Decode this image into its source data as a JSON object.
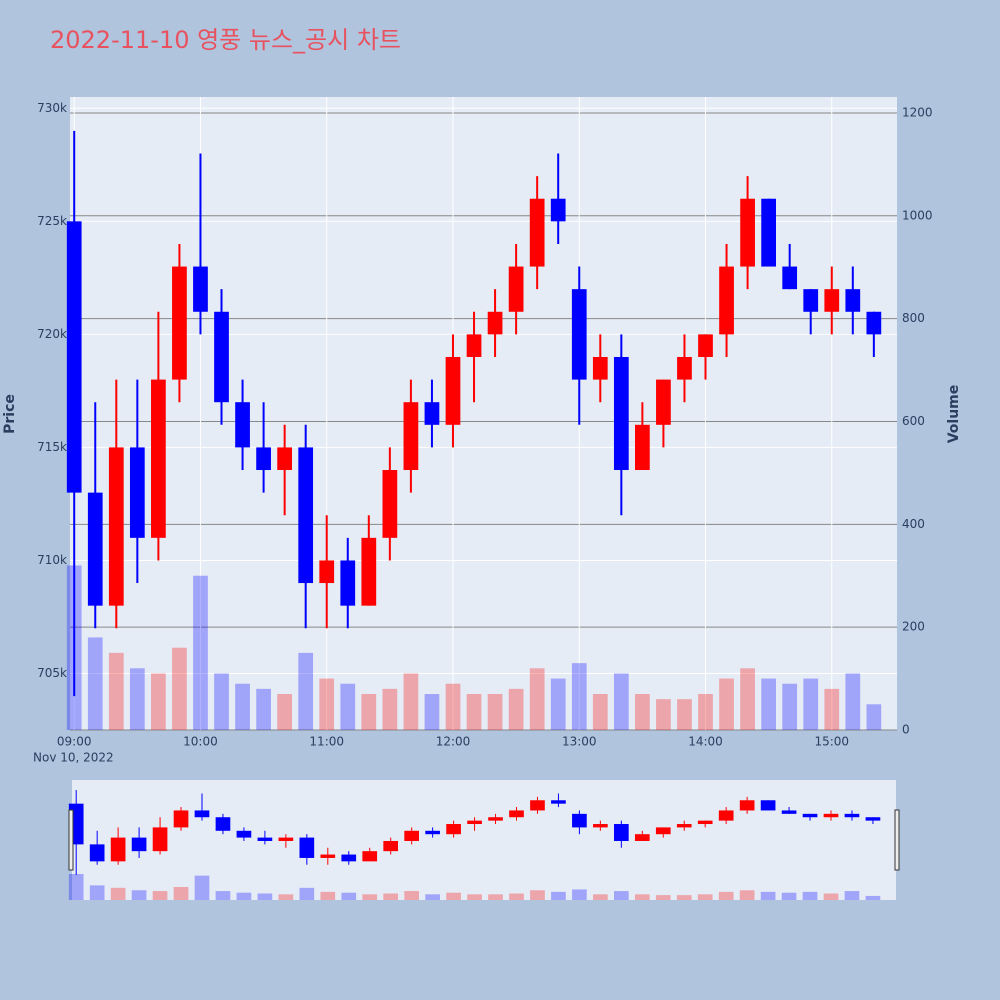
{
  "chart_data": {
    "type": "candlestick",
    "title": "2022-11-10 영풍 뉴스_공시 차트",
    "y_label": "Price",
    "y2_label": "Volume",
    "x_date_label": "Nov 10, 2022",
    "increasing_color": "#ff0000",
    "decreasing_color": "#0000ff",
    "x": [
      "2022-11-10 09:00",
      "2022-11-10 09:10",
      "2022-11-10 09:20",
      "2022-11-10 09:30",
      "2022-11-10 09:40",
      "2022-11-10 09:50",
      "2022-11-10 10:00",
      "2022-11-10 10:10",
      "2022-11-10 10:20",
      "2022-11-10 10:30",
      "2022-11-10 10:40",
      "2022-11-10 10:50",
      "2022-11-10 11:00",
      "2022-11-10 11:10",
      "2022-11-10 11:20",
      "2022-11-10 11:30",
      "2022-11-10 11:40",
      "2022-11-10 11:50",
      "2022-11-10 12:00",
      "2022-11-10 12:10",
      "2022-11-10 12:20",
      "2022-11-10 12:30",
      "2022-11-10 12:40",
      "2022-11-10 12:50",
      "2022-11-10 13:00",
      "2022-11-10 13:10",
      "2022-11-10 13:20",
      "2022-11-10 13:30",
      "2022-11-10 13:40",
      "2022-11-10 13:50",
      "2022-11-10 14:00",
      "2022-11-10 14:10",
      "2022-11-10 14:20",
      "2022-11-10 14:30",
      "2022-11-10 14:40",
      "2022-11-10 14:50",
      "2022-11-10 15:00",
      "2022-11-10 15:10",
      "2022-11-10 15:20"
    ],
    "open": [
      725000,
      713000,
      708000,
      715000,
      711000,
      718000,
      723000,
      721000,
      717000,
      715000,
      714000,
      715000,
      709000,
      710000,
      708000,
      711000,
      714000,
      717000,
      716000,
      719000,
      720000,
      721000,
      723000,
      726000,
      722000,
      718000,
      719000,
      714000,
      716000,
      718000,
      719000,
      720000,
      723000,
      726000,
      723000,
      722000,
      721000,
      722000,
      721000
    ],
    "high": [
      729000,
      717000,
      718000,
      718000,
      721000,
      724000,
      728000,
      722000,
      718000,
      717000,
      716000,
      716000,
      712000,
      711000,
      712000,
      715000,
      718000,
      718000,
      720000,
      721000,
      722000,
      724000,
      727000,
      728000,
      723000,
      720000,
      720000,
      717000,
      718000,
      720000,
      720000,
      724000,
      727000,
      726000,
      724000,
      722000,
      723000,
      723000,
      721000
    ],
    "low": [
      704000,
      707000,
      707000,
      709000,
      710000,
      717000,
      720000,
      716000,
      714000,
      713000,
      712000,
      707000,
      707000,
      707000,
      708000,
      710000,
      713000,
      715000,
      715000,
      717000,
      719000,
      720000,
      722000,
      724000,
      716000,
      717000,
      712000,
      714000,
      715000,
      717000,
      718000,
      719000,
      722000,
      723000,
      722000,
      720000,
      720000,
      720000,
      719000
    ],
    "close": [
      713000,
      708000,
      715000,
      711000,
      718000,
      723000,
      721000,
      717000,
      715000,
      714000,
      715000,
      709000,
      710000,
      708000,
      711000,
      714000,
      717000,
      716000,
      719000,
      720000,
      721000,
      723000,
      726000,
      725000,
      718000,
      719000,
      714000,
      716000,
      718000,
      719000,
      720000,
      723000,
      726000,
      723000,
      722000,
      721000,
      722000,
      721000,
      720000
    ],
    "volume": [
      320,
      180,
      150,
      120,
      110,
      160,
      300,
      110,
      90,
      80,
      70,
      150,
      100,
      90,
      70,
      80,
      110,
      70,
      90,
      70,
      70,
      80,
      120,
      100,
      130,
      70,
      110,
      70,
      60,
      60,
      70,
      100,
      120,
      100,
      90,
      100,
      80,
      110,
      50
    ],
    "xlim": [
      "2022-11-10 08:58",
      "2022-11-10 15:31"
    ],
    "xticks": [
      {
        "value": "2022-11-10 09:00",
        "label": "09:00"
      },
      {
        "value": "2022-11-10 10:00",
        "label": "10:00"
      },
      {
        "value": "2022-11-10 11:00",
        "label": "11:00"
      },
      {
        "value": "2022-11-10 12:00",
        "label": "12:00"
      },
      {
        "value": "2022-11-10 13:00",
        "label": "13:00"
      },
      {
        "value": "2022-11-10 14:00",
        "label": "14:00"
      },
      {
        "value": "2022-11-10 15:00",
        "label": "15:00"
      }
    ],
    "ylim": [
      702500,
      730500
    ],
    "yticks": [
      {
        "value": 705000,
        "label": "705k"
      },
      {
        "value": 710000,
        "label": "710k"
      },
      {
        "value": 715000,
        "label": "715k"
      },
      {
        "value": 720000,
        "label": "720k"
      },
      {
        "value": 725000,
        "label": "725k"
      },
      {
        "value": 730000,
        "label": "730k"
      }
    ],
    "y2lim": [
      0,
      1231
    ],
    "y2ticks": [
      0,
      200,
      400,
      600,
      800,
      1000,
      1200
    ],
    "grid": true
  }
}
